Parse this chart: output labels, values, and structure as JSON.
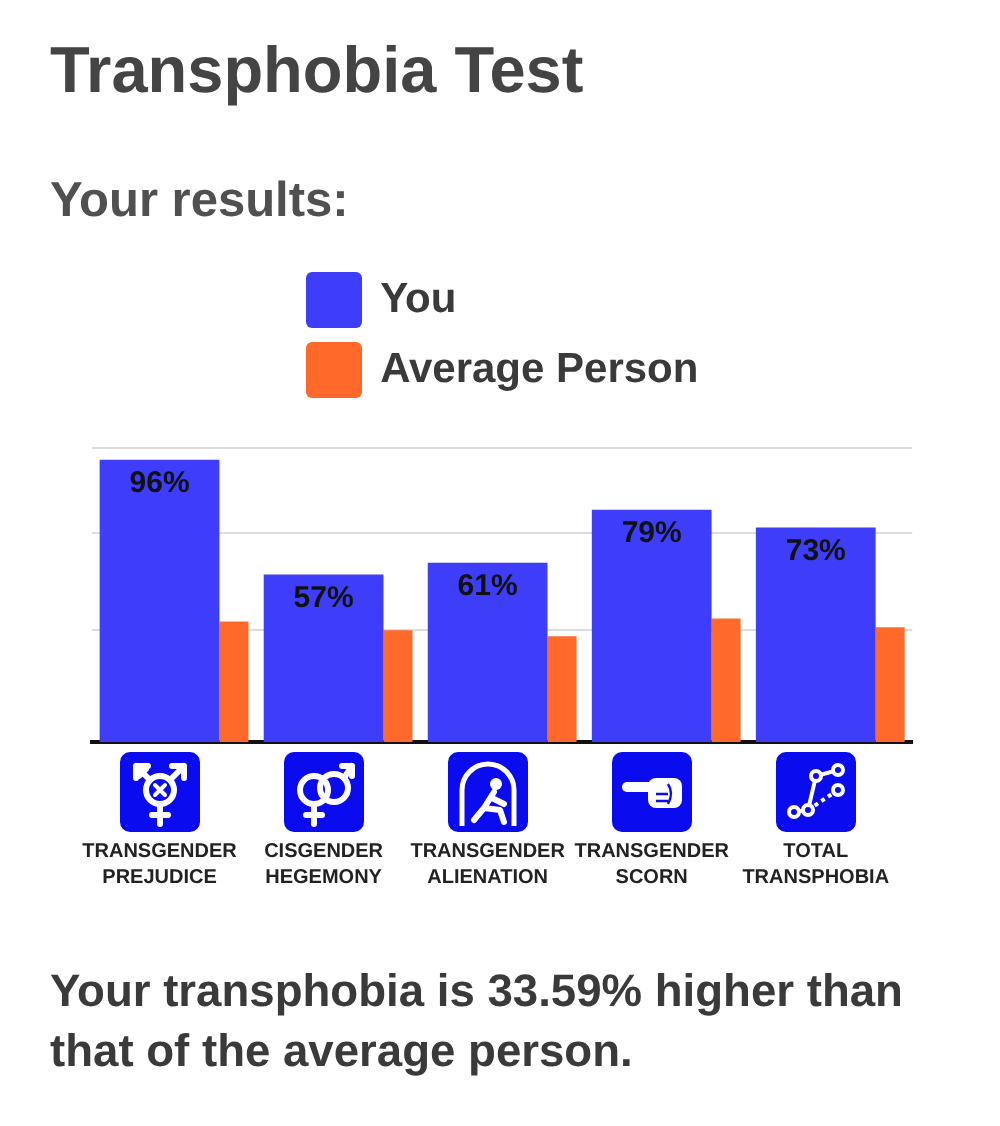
{
  "chart_data": {
    "type": "bar",
    "title": "Transphobia Test",
    "subtitle": "Your results:",
    "categories": [
      "TRANSGENDER PREJUDICE",
      "CISGENDER HEGEMONY",
      "TRANSGENDER ALIENATION",
      "TRANSGENDER SCORN",
      "TOTAL TRANSPHOBIA"
    ],
    "series": [
      {
        "name": "You",
        "color": "#3d3dfa",
        "values": [
          96,
          57,
          61,
          79,
          73
        ],
        "value_labels": [
          "96%",
          "57%",
          "61%",
          "79%",
          "73%"
        ]
      },
      {
        "name": "Average Person",
        "color": "#ff6a2b",
        "values": [
          41,
          38,
          36,
          42,
          39
        ]
      }
    ],
    "ylim": [
      0,
      100
    ],
    "yticks": [
      {
        "value": 38,
        "label": null
      },
      {
        "value": 71,
        "label": null
      },
      {
        "value": 100,
        "label": null
      }
    ],
    "grid": "y",
    "legend": "top",
    "tick_labels": "x",
    "annotations": [
      "Your transphobia is 33.59% higher than that of the average person."
    ]
  }
}
